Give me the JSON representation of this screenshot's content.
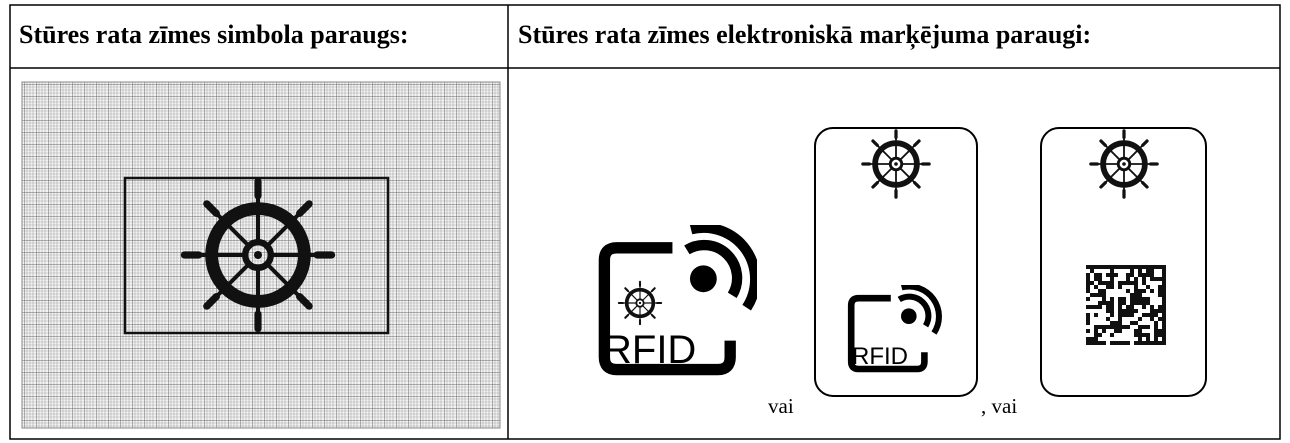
{
  "table": {
    "header": [
      "Stūres rata zīmes simbola paraugs:",
      "Stūres rata zīmes elektroniskā marķējuma paraugi:"
    ],
    "body": {
      "rfid_label_1": "RFID",
      "separator_1": "vai",
      "rfid_label_2": "RFID",
      "separator_2": ", vai"
    }
  }
}
